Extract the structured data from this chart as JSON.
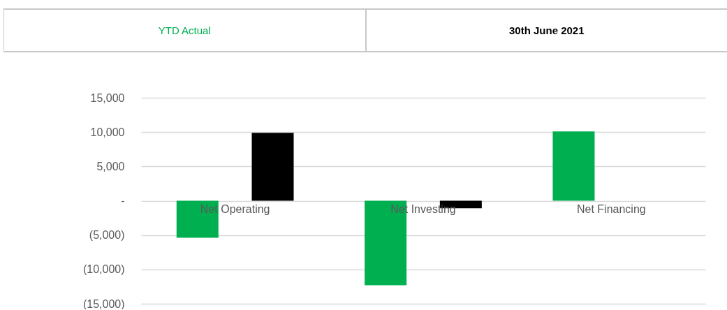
{
  "chart_data": {
    "type": "bar",
    "categories": [
      "Net Operating",
      "Net Investing",
      "Net Financing"
    ],
    "series": [
      {
        "name": "YTD Actual",
        "color": "#00b050",
        "values": [
          -5400,
          -12300,
          10100
        ]
      },
      {
        "name": "30th June 2021",
        "color": "#000000",
        "values": [
          9900,
          -1100,
          null
        ]
      }
    ],
    "ylim": [
      -15000,
      15000
    ],
    "yticks": [
      {
        "value": -15000,
        "label": "(15,000)"
      },
      {
        "value": -10000,
        "label": "(10,000)"
      },
      {
        "value": -5000,
        "label": "(5,000)"
      },
      {
        "value": 0,
        "label": "-"
      },
      {
        "value": 5000,
        "label": "5,000"
      },
      {
        "value": 10000,
        "label": "10,000"
      },
      {
        "value": 15000,
        "label": "15,000"
      }
    ],
    "grid": "y",
    "legend": "top"
  }
}
